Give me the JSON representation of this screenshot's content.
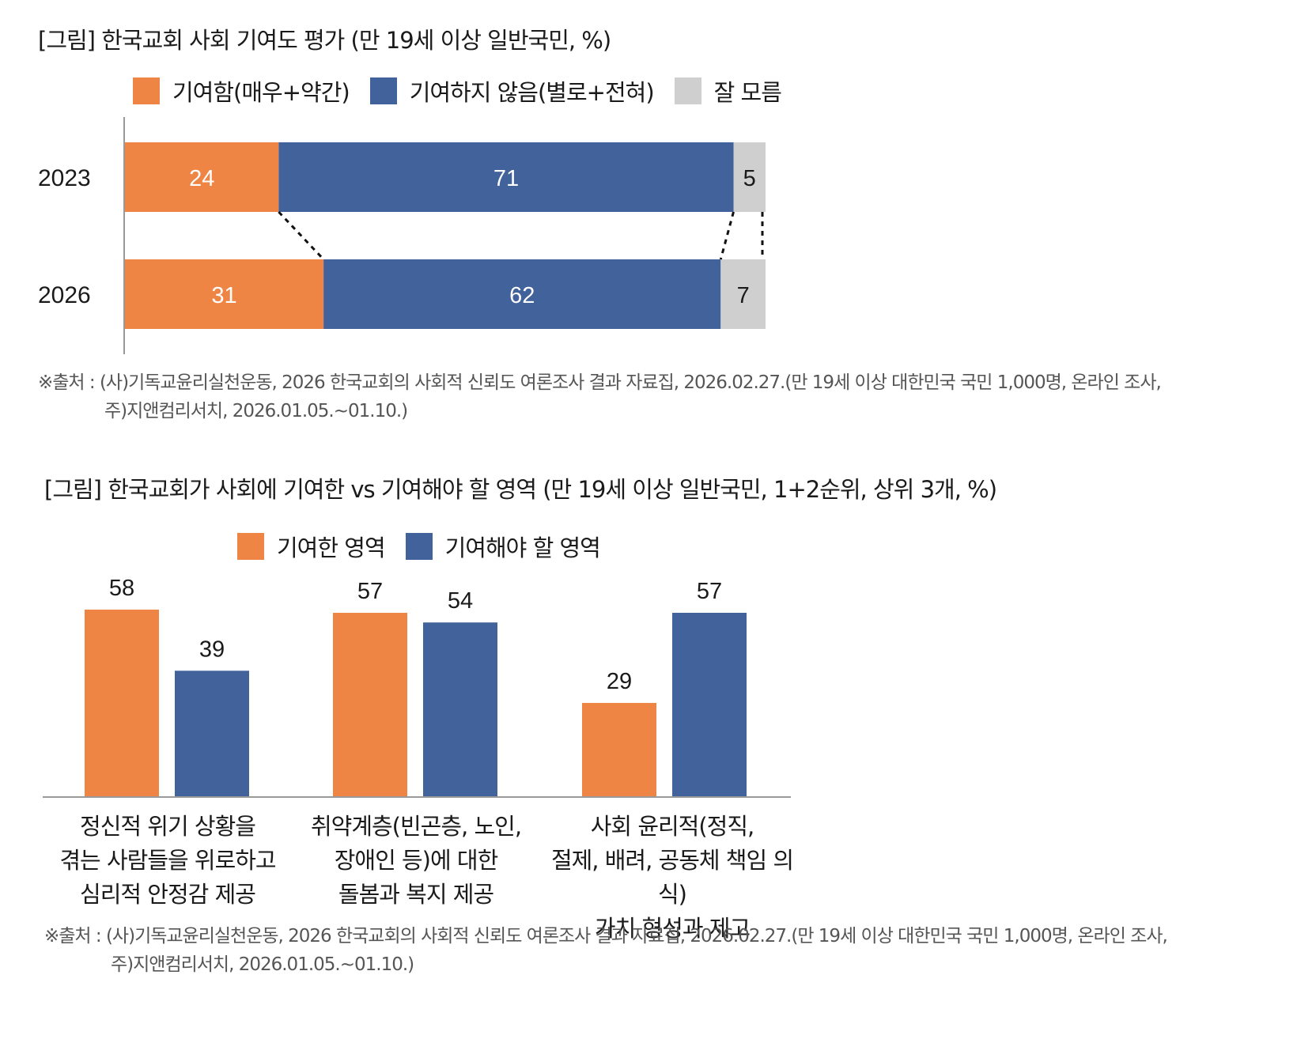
{
  "figure1": {
    "title": "[그림] 한국교회 사회 기여도 평가 (만 19세 이상 일반국민, %)",
    "legend": [
      "기여함(매우+약간)",
      "기여하지 않음(별로+전혀)",
      "잘 모름"
    ],
    "source_line1": "※출처 : (사)기독교윤리실천운동, 2026 한국교회의 사회적 신뢰도 여론조사 결과 자료집, 2026.02.27.(만 19세 이상 대한민국 국민 1,000명, 온라인 조사,",
    "source_line2": "주)지앤컴리서치, 2026.01.05.~01.10.)"
  },
  "figure2": {
    "title": "[그림] 한국교회가 사회에 기여한 vs 기여해야 할 영역 (만 19세 이상 일반국민, 1+2순위, 상위 3개, %)",
    "legend": [
      "기여한 영역",
      "기여해야 할 영역"
    ],
    "categories": [
      [
        "정신적 위기 상황을",
        "겪는 사람들을 위로하고",
        "심리적 안정감 제공"
      ],
      [
        "취약계층(빈곤층, 노인,",
        "장애인 등)에 대한",
        "돌봄과 복지 제공"
      ],
      [
        "사회 윤리적(정직,",
        "절제, 배려, 공동체 책임 의식)",
        "가치 형성과 제고"
      ]
    ],
    "source_line1": "※출처 : (사)기독교윤리실천운동, 2026 한국교회의 사회적 신뢰도 여론조사 결과 자료집, 2026.02.27.(만 19세 이상 대한민국 국민 1,000명, 온라인 조사,",
    "source_line2": "주)지앤컴리서치, 2026.01.05.~01.10.)"
  },
  "colors": {
    "orange": "#ef8544",
    "blue": "#41629a",
    "gray": "#cfcfcf"
  },
  "chart_data": [
    {
      "type": "bar",
      "orientation": "horizontal",
      "stacked": true,
      "categories": [
        "2023",
        "2026"
      ],
      "series": [
        {
          "name": "기여함(매우+약간)",
          "values": [
            24,
            31
          ]
        },
        {
          "name": "기여하지 않음(별로+전혀)",
          "values": [
            71,
            62
          ]
        },
        {
          "name": "잘 모름",
          "values": [
            5,
            7
          ]
        }
      ],
      "title": "[그림] 한국교회 사회 기여도 평가 (만 19세 이상 일반국민, %)",
      "legend": "top"
    },
    {
      "type": "bar",
      "categories": [
        "정신적 위기 상황을 겪는 사람들을 위로하고 심리적 안정감 제공",
        "취약계층(빈곤층, 노인, 장애인 등)에 대한 돌봄과 복지 제공",
        "사회 윤리적(정직, 절제, 배려, 공동체 책임 의식) 가치 형성과 제고"
      ],
      "series": [
        {
          "name": "기여한 영역",
          "values": [
            58,
            57,
            29
          ]
        },
        {
          "name": "기여해야 할 영역",
          "values": [
            39,
            54,
            57
          ]
        }
      ],
      "title": "[그림] 한국교회가 사회에 기여한 vs 기여해야 할 영역 (만 19세 이상 일반국민, 1+2순위, 상위 3개, %)",
      "legend": "top"
    }
  ]
}
